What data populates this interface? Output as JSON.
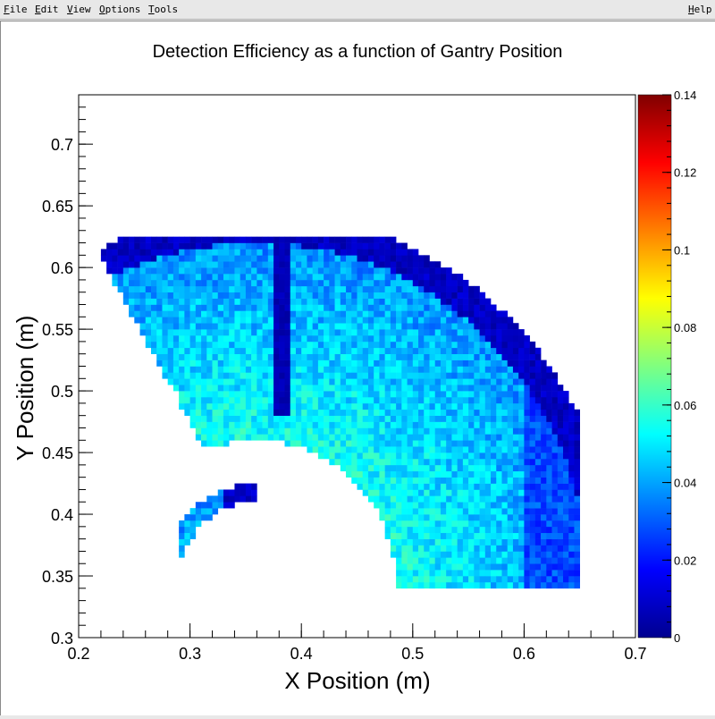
{
  "menubar": {
    "items": [
      "File",
      "Edit",
      "View",
      "Options",
      "Tools"
    ],
    "help": "Help"
  },
  "colors": {
    "palette_low": "#00008f",
    "palette_high": "#800000",
    "frame": "#000000",
    "background": "#ffffff"
  },
  "chart_data": {
    "type": "heatmap",
    "title": "Detection Efficiency as a function of Gantry Position",
    "xlabel": "X Position (m)",
    "ylabel": "Y Position (m)",
    "xlim": [
      0.2,
      0.7
    ],
    "ylim": [
      0.3,
      0.74
    ],
    "zlim": [
      0,
      0.14
    ],
    "x_tick_labels": [
      "0.2",
      "0.3",
      "0.4",
      "0.5",
      "0.6",
      "0.7"
    ],
    "y_tick_labels": [
      "0.3",
      "0.35",
      "0.4",
      "0.45",
      "0.5",
      "0.55",
      "0.6",
      "0.65",
      "0.7"
    ],
    "colorbar_tick_labels": [
      "0",
      "0.02",
      "0.04",
      "0.06",
      "0.08",
      "0.1",
      "0.12",
      "0.14"
    ],
    "grid": false,
    "colorscale": "rainbow",
    "bin_size": 0.005,
    "regions": [
      {
        "shape": "annular-sector",
        "center": [
          0.36,
          0.345
        ],
        "r_inner": 0.115,
        "r_outer": 0.3,
        "y_min": 0.34,
        "x_min": 0.22,
        "x_max": 0.65,
        "z_typical": 0.05,
        "z_edge": 0.003
      },
      {
        "shape": "arc-band",
        "center": [
          0.36,
          0.345
        ],
        "r_inner": 0.065,
        "r_outer": 0.08,
        "y_min": 0.34,
        "x_min": 0.29,
        "x_max": 0.36,
        "z_typical": 0.04
      },
      {
        "shape": "vertical-gap",
        "x_range": [
          0.375,
          0.39
        ],
        "z_typical": 0.003
      }
    ]
  }
}
